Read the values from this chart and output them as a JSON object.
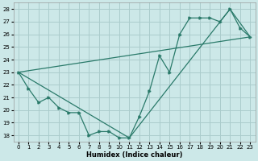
{
  "xlabel": "Humidex (Indice chaleur)",
  "bg_color": "#cce8e8",
  "grid_color": "#aacccc",
  "line_color": "#2a7a6a",
  "xlim": [
    -0.5,
    23.5
  ],
  "ylim": [
    17.5,
    28.5
  ],
  "xticks": [
    0,
    1,
    2,
    3,
    4,
    5,
    6,
    7,
    8,
    9,
    10,
    11,
    12,
    13,
    14,
    15,
    16,
    17,
    18,
    19,
    20,
    21,
    22,
    23
  ],
  "yticks": [
    18,
    19,
    20,
    21,
    22,
    23,
    24,
    25,
    26,
    27,
    28
  ],
  "line1_x": [
    0,
    1,
    2,
    3,
    4,
    5,
    6,
    7,
    8,
    9,
    10,
    11,
    12,
    13,
    14,
    15,
    16,
    17,
    18,
    19,
    20,
    21,
    22,
    23
  ],
  "line1_y": [
    23,
    21.7,
    20.6,
    21.0,
    20.2,
    19.8,
    19.8,
    18.0,
    18.3,
    18.3,
    17.8,
    17.8,
    19.5,
    21.5,
    24.3,
    23.0,
    26.0,
    27.3,
    27.3,
    27.3,
    27.0,
    28.0,
    26.5,
    25.8
  ],
  "line2_x": [
    0,
    11,
    21,
    23
  ],
  "line2_y": [
    23,
    17.8,
    28.0,
    25.8
  ],
  "line3_x": [
    0,
    23
  ],
  "line3_y": [
    23,
    25.8
  ],
  "xlabel_fontsize": 6,
  "tick_fontsize": 5
}
